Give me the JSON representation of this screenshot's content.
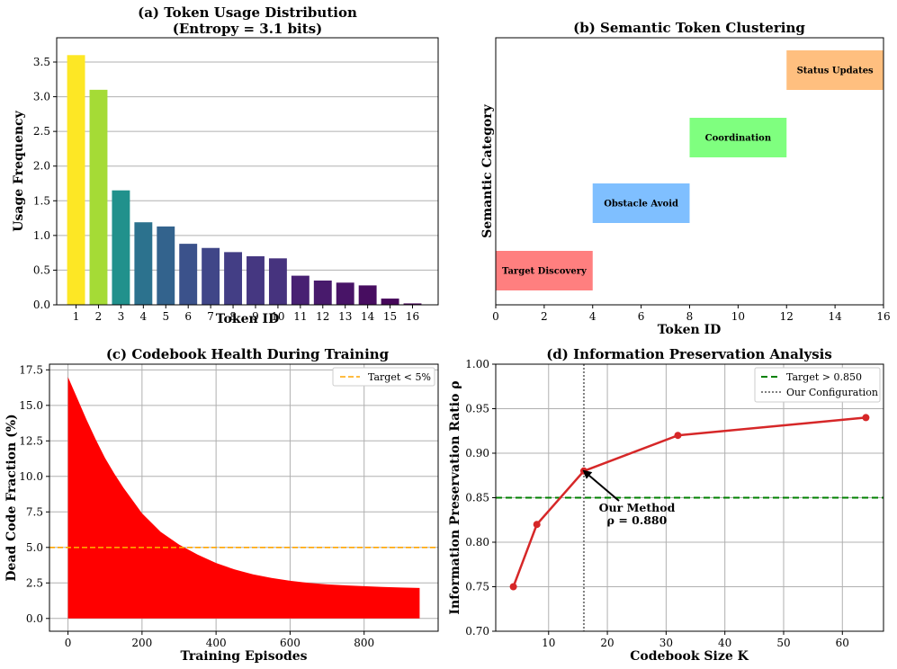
{
  "chart_data": [
    {
      "type": "bar",
      "title": "(a) Token Usage Distribution",
      "subtitle": "(Entropy = 3.1 bits)",
      "xlabel": "Token ID",
      "ylabel": "Usage Frequency",
      "categories": [
        "1",
        "2",
        "3",
        "4",
        "5",
        "6",
        "7",
        "8",
        "9",
        "10",
        "11",
        "12",
        "13",
        "14",
        "15",
        "16"
      ],
      "values": [
        3.6,
        3.1,
        1.65,
        1.19,
        1.13,
        0.88,
        0.82,
        0.76,
        0.7,
        0.67,
        0.42,
        0.35,
        0.32,
        0.28,
        0.09,
        0.02
      ],
      "colors": [
        "#fde725",
        "#a5db36",
        "#21918c",
        "#2c728e",
        "#33638d",
        "#3b528b",
        "#404688",
        "#433e85",
        "#453781",
        "#46337e",
        "#482173",
        "#481a6c",
        "#481467",
        "#470d60",
        "#46075a",
        "#440154"
      ],
      "ylim": [
        0,
        3.85
      ],
      "yticks": [
        "0.0",
        "0.5",
        "1.0",
        "1.5",
        "2.0",
        "2.5",
        "3.0",
        "3.5"
      ],
      "grid": "y"
    },
    {
      "type": "bar",
      "orientation": "horizontal",
      "title": "(b) Semantic Token Clustering",
      "xlabel": "Token ID",
      "ylabel": "Semantic Category",
      "xlim": [
        0,
        16
      ],
      "xticks": [
        "0",
        "2",
        "4",
        "6",
        "8",
        "10",
        "12",
        "14",
        "16"
      ],
      "segments": [
        {
          "label": "Target Discovery",
          "start": 0,
          "end": 4,
          "color": "#ff7f7f"
        },
        {
          "label": "Obstacle Avoid",
          "start": 4,
          "end": 8,
          "color": "#7fbfff"
        },
        {
          "label": "Coordination",
          "start": 8,
          "end": 12,
          "color": "#7fff7f"
        },
        {
          "label": "Status Updates",
          "start": 12,
          "end": 16,
          "color": "#ffbf7f"
        }
      ]
    },
    {
      "type": "area",
      "title": "(c) Codebook Health During Training",
      "xlabel": "Training Episodes",
      "ylabel": "Dead Code Fraction (%)",
      "x": [
        0,
        25,
        50,
        75,
        100,
        125,
        150,
        175,
        200,
        250,
        300,
        350,
        400,
        450,
        500,
        550,
        600,
        650,
        700,
        750,
        800,
        850,
        900,
        950
      ],
      "y": [
        17.0,
        15.5,
        14.0,
        12.6,
        11.3,
        10.2,
        9.2,
        8.3,
        7.4,
        6.1,
        5.2,
        4.5,
        3.9,
        3.45,
        3.1,
        2.85,
        2.65,
        2.5,
        2.4,
        2.33,
        2.27,
        2.22,
        2.18,
        2.15
      ],
      "fill_color": "#ff0000",
      "xlim": [
        -50,
        1000
      ],
      "ylim": [
        -0.9,
        17.9
      ],
      "xticks": [
        "0",
        "200",
        "400",
        "600",
        "800"
      ],
      "yticks": [
        "0.0",
        "2.5",
        "5.0",
        "7.5",
        "10.0",
        "12.5",
        "15.0",
        "17.5"
      ],
      "reference_line": {
        "label": "Target < 5%",
        "y": 5.0,
        "color": "#ffa500"
      },
      "legend": "top-right",
      "grid": true
    },
    {
      "type": "line",
      "title": "(d) Information Preservation Analysis",
      "xlabel": "Codebook Size K",
      "ylabel": "Information Preservation Ratio ρ",
      "x": [
        4,
        8,
        16,
        32,
        64
      ],
      "y": [
        0.75,
        0.82,
        0.88,
        0.92,
        0.94
      ],
      "line_color": "#d62728",
      "xlim": [
        1,
        67
      ],
      "ylim": [
        0.7,
        1.0
      ],
      "xticks": [
        "10",
        "20",
        "30",
        "40",
        "50",
        "60"
      ],
      "yticks": [
        "0.70",
        "0.75",
        "0.80",
        "0.85",
        "0.90",
        "0.95",
        "1.00"
      ],
      "reference_lines": [
        {
          "label": "Target > 0.850",
          "orientation": "horizontal",
          "value": 0.85,
          "color": "#008000"
        },
        {
          "label": "Our Configuration",
          "orientation": "vertical",
          "value": 16,
          "color": "#808080"
        }
      ],
      "annotation": {
        "line1": "Our Method",
        "line2": "ρ = 0.880",
        "x": 16,
        "y": 0.88
      },
      "legend": "top-right",
      "grid": true
    }
  ]
}
